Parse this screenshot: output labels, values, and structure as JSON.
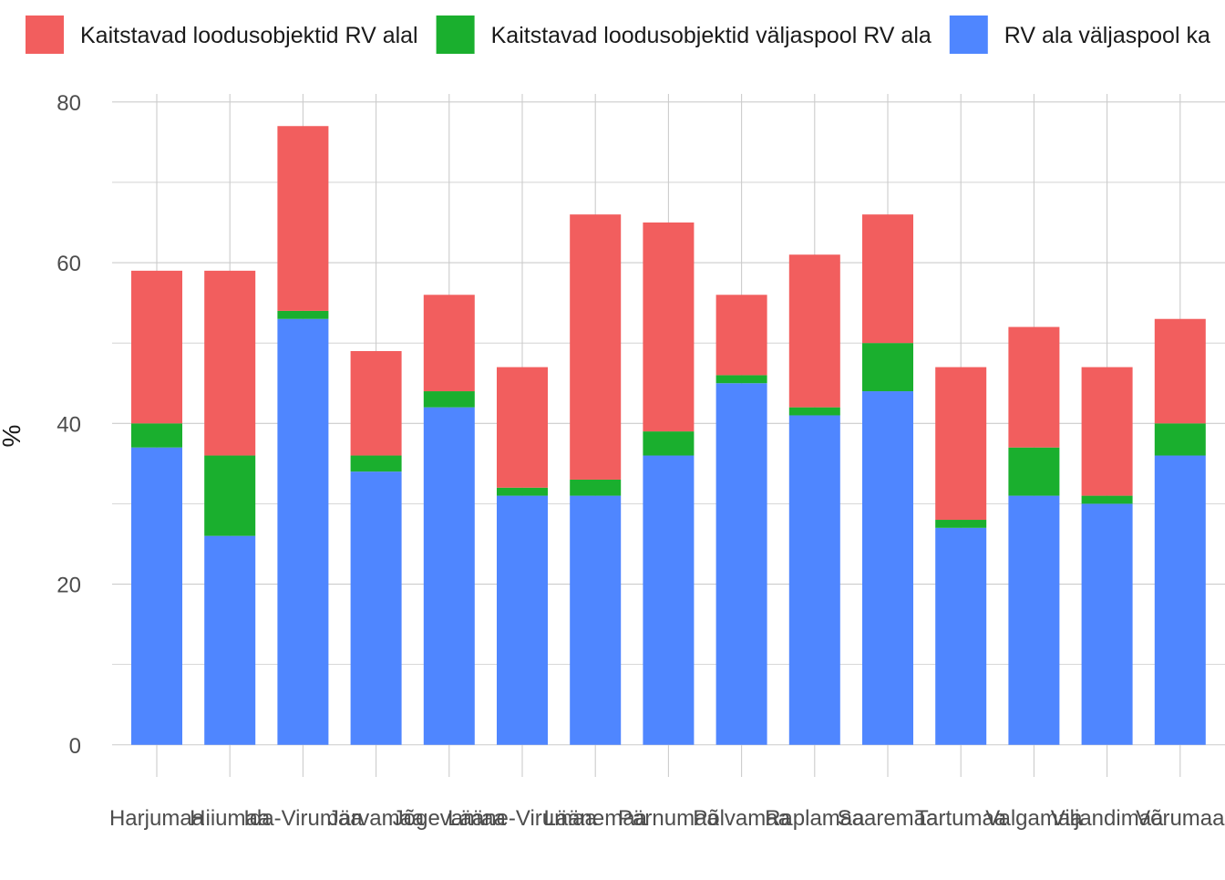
{
  "chart_data": {
    "type": "bar",
    "stacked": true,
    "ylabel": "%",
    "xlabel": "",
    "ylim": [
      -4,
      81
    ],
    "yticks": [
      0,
      20,
      40,
      60,
      80
    ],
    "grid": true,
    "legend_position": "top",
    "categories": [
      "Harjumaa",
      "Hiiumaa",
      "Ida-Virumaa",
      "Järvamaa",
      "Jõgevamaa",
      "Lääne-Virumaa",
      "Läänemaa",
      "Pärnumaa",
      "Põlvamaa",
      "Raplamaa",
      "Saaremaa",
      "Tartumaa",
      "Valgamaa",
      "Viljandimaa",
      "Võrumaa"
    ],
    "series": [
      {
        "name": "RV ala väljaspool kaitstavaid loodusobjekte",
        "color": "#4f86ff",
        "values": [
          37,
          26,
          53,
          34,
          42,
          31,
          31,
          36,
          45,
          41,
          44,
          27,
          31,
          30,
          36
        ]
      },
      {
        "name": "Kaitstavad loodusobjektid väljaspool RV ala",
        "color": "#1aaf2e",
        "values": [
          3,
          10,
          1,
          2,
          2,
          1,
          2,
          3,
          1,
          1,
          6,
          1,
          6,
          1,
          4
        ]
      },
      {
        "name": "Kaitstavad loodusobjektid RV alal",
        "color": "#f25e5e",
        "values": [
          19,
          23,
          23,
          13,
          12,
          15,
          33,
          26,
          10,
          19,
          16,
          19,
          15,
          16,
          13
        ]
      }
    ],
    "legend_order": [
      2,
      1,
      0
    ],
    "legend_labels": [
      "Kaitstavad loodusobjektid RV alal",
      "Kaitstavad loodusobjektid väljaspool RV ala",
      "RV ala väljaspool ka"
    ]
  }
}
